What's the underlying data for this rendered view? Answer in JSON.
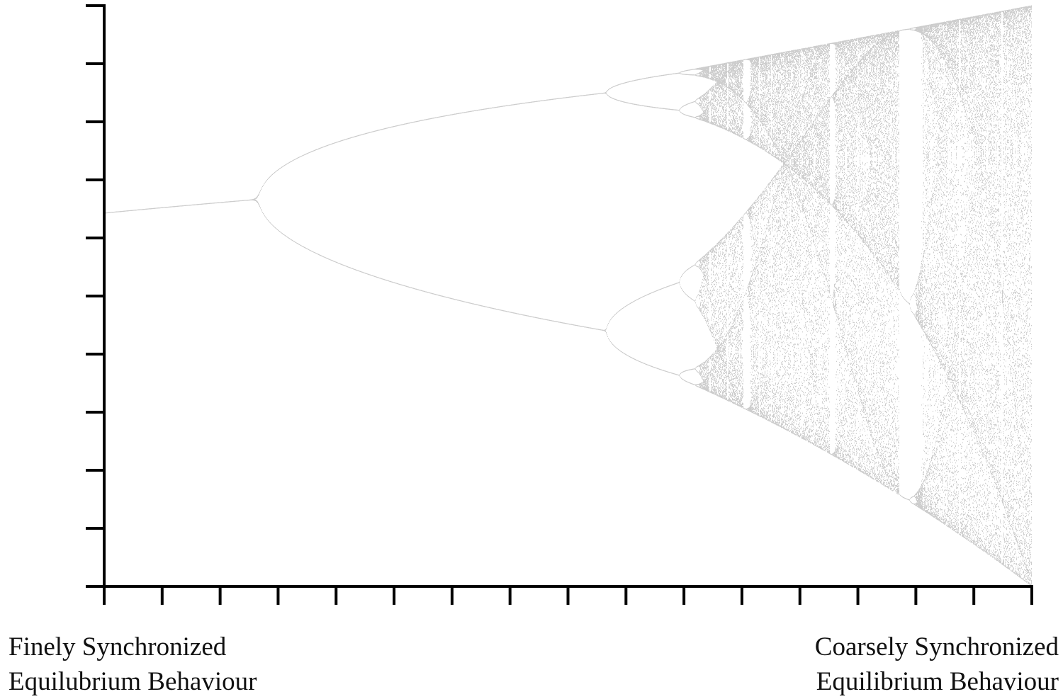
{
  "chart_data": {
    "type": "scatter",
    "title": "",
    "xlabel": "",
    "ylabel": "",
    "xlim": [
      2.8,
      4.0
    ],
    "ylim": [
      0.0,
      1.0
    ],
    "x_tick_count": 17,
    "y_tick_count": 11,
    "tick_labels_shown": false,
    "grid": false,
    "marker_color": "#000000",
    "axis_color": "#000000",
    "annotations": {
      "left": [
        "Finely Synchronized",
        "Equilubrium Behaviour"
      ],
      "right": [
        "Coarsely Synchronized",
        "Equilibrium Behaviour"
      ]
    },
    "bifurcation_points": [
      {
        "x": 3.0,
        "y": [
          0.6667
        ]
      },
      {
        "x": 3.449,
        "y": [
          0.44,
          0.8499
        ]
      },
      {
        "x": 3.544,
        "y": [
          0.3828,
          0.5009,
          0.8269,
          0.8865
        ]
      }
    ],
    "endpoint_fixed_point": {
      "x": 2.8,
      "y": 0.6429
    },
    "chaos_range_at_x_max": [
      0.0,
      1.0
    ],
    "periodic_window": {
      "x_start": 3.8284,
      "x_end": 3.8415,
      "period": 3
    }
  }
}
